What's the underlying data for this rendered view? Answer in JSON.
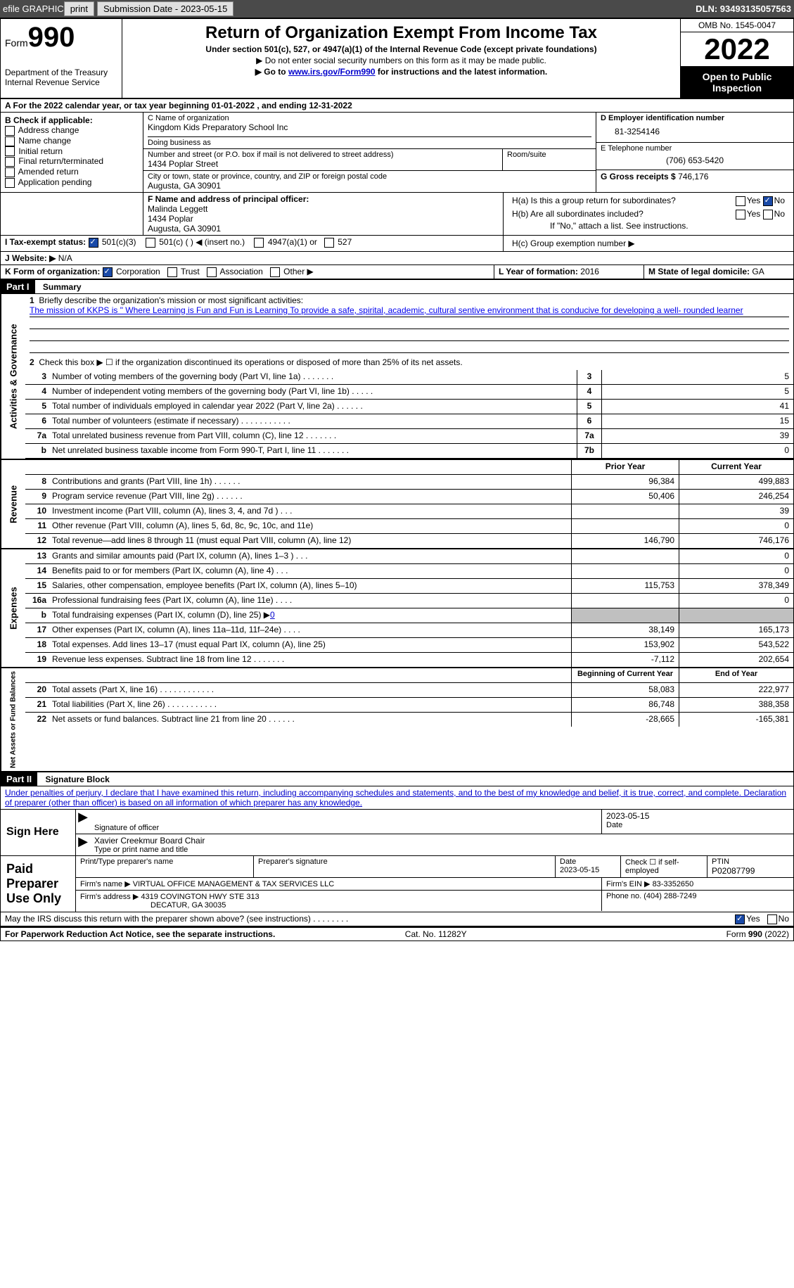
{
  "topbar": {
    "efile": "efile GRAPHIC",
    "print": "print",
    "sub_label": "Submission Date - 2023-05-15",
    "dln": "DLN: 93493135057563"
  },
  "header": {
    "form_word": "Form",
    "form_num": "990",
    "dept": "Department of the Treasury",
    "irs": "Internal Revenue Service",
    "title": "Return of Organization Exempt From Income Tax",
    "subtitle": "Under section 501(c), 527, or 4947(a)(1) of the Internal Revenue Code (except private foundations)",
    "note1": "▶ Do not enter social security numbers on this form as it may be made public.",
    "note2_pre": "▶ Go to ",
    "note2_link": "www.irs.gov/Form990",
    "note2_suf": " for instructions and the latest information.",
    "omb": "OMB No. 1545-0047",
    "year": "2022",
    "inspection": "Open to Public Inspection"
  },
  "rowA": "A For the 2022 calendar year, or tax year beginning 01-01-2022     , and ending 12-31-2022",
  "B": {
    "label": "B Check if applicable:",
    "items": [
      "Address change",
      "Name change",
      "Initial return",
      "Final return/terminated",
      "Amended return",
      "Application pending"
    ]
  },
  "C": {
    "name_label": "C Name of organization",
    "name": "Kingdom Kids Preparatory School Inc",
    "dba_label": "Doing business as",
    "dba": "",
    "street_label": "Number and street (or P.O. box if mail is not delivered to street address)",
    "room_label": "Room/suite",
    "street": "1434 Poplar Street",
    "city_label": "City or town, state or province, country, and ZIP or foreign postal code",
    "city": "Augusta, GA  30901"
  },
  "D": {
    "label": "D Employer identification number",
    "value": "81-3254146"
  },
  "E": {
    "label": "E Telephone number",
    "value": "(706) 653-5420"
  },
  "G": {
    "label": "G Gross receipts $",
    "value": "746,176"
  },
  "F": {
    "label": "F  Name and address of principal officer:",
    "name": "Malinda Leggett",
    "addr1": "1434 Poplar",
    "addr2": "Augusta, GA  30901"
  },
  "H": {
    "a": "H(a)  Is this a group return for subordinates?",
    "b": "H(b)  Are all subordinates included?",
    "b_note": "If \"No,\" attach a list. See instructions.",
    "c": "H(c)  Group exemption number ▶",
    "yes": "Yes",
    "no": "No"
  },
  "I": {
    "label": "I     Tax-exempt status:",
    "opt1": "501(c)(3)",
    "opt2": "501(c) (   ) ◀ (insert no.)",
    "opt3": "4947(a)(1) or",
    "opt4": "527"
  },
  "J": {
    "label": "J    Website: ▶",
    "value": "N/A"
  },
  "K": {
    "label": "K Form of organization:",
    "corp": "Corporation",
    "trust": "Trust",
    "assoc": "Association",
    "other": "Other ▶"
  },
  "L": {
    "label": "L Year of formation:",
    "value": "2016"
  },
  "M": {
    "label": "M State of legal domicile:",
    "value": "GA"
  },
  "part1": {
    "label": "Part I",
    "title": "Summary"
  },
  "act_label": "Activities & Governance",
  "rev_label": "Revenue",
  "exp_label": "Expenses",
  "net_label": "Net Assets or Fund Balances",
  "line1": {
    "num": "1",
    "text": "Briefly describe the organization's mission or most significant activities:",
    "mission": "The mission of KKPS is \" Where Learning is Fun and Fun is Learning To provide a safe, spirital, academic, cultural sentive environment that is conducive for developing a well- rounded learner"
  },
  "line2": {
    "num": "2",
    "text": "Check this box ▶ ☐ if the organization discontinued its operations or disposed of more than 25% of its net assets."
  },
  "summary_rows": [
    {
      "num": "3",
      "text": "Number of voting members of the governing body (Part VI, line 1a)   .    .    .    .    .    .    .",
      "box": "3",
      "val": "5"
    },
    {
      "num": "4",
      "text": "Number of independent voting members of the governing body (Part VI, line 1b)  .    .    .    .    .",
      "box": "4",
      "val": "5"
    },
    {
      "num": "5",
      "text": "Total number of individuals employed in calendar year 2022 (Part V, line 2a) .    .    .    .    .    .",
      "box": "5",
      "val": "41"
    },
    {
      "num": "6",
      "text": "Total number of volunteers (estimate if necessary)   .    .    .    .    .    .    .    .    .    .    .",
      "box": "6",
      "val": "15"
    },
    {
      "num": "7a",
      "text": "Total unrelated business revenue from Part VIII, column (C), line 12  .    .    .    .    .    .    .",
      "box": "7a",
      "val": "39"
    },
    {
      "num": "b",
      "text": "Net unrelated business taxable income from Form 990-T, Part I, line 11   .    .    .    .    .    .    .",
      "box": "7b",
      "val": "0"
    }
  ],
  "col_headers": {
    "prior": "Prior Year",
    "current": "Current Year",
    "boy": "Beginning of Current Year",
    "eoy": "End of Year"
  },
  "revenue_rows": [
    {
      "num": "8",
      "text": "Contributions and grants (Part VIII, line 1h)   .    .    .    .    .    .",
      "prior": "96,384",
      "curr": "499,883"
    },
    {
      "num": "9",
      "text": "Program service revenue (Part VIII, line 2g)    .    .    .    .    .    .",
      "prior": "50,406",
      "curr": "246,254"
    },
    {
      "num": "10",
      "text": "Investment income (Part VIII, column (A), lines 3, 4, and 7d )  .    .    .",
      "prior": "",
      "curr": "39"
    },
    {
      "num": "11",
      "text": "Other revenue (Part VIII, column (A), lines 5, 6d, 8c, 9c, 10c, and 11e)",
      "prior": "",
      "curr": "0"
    },
    {
      "num": "12",
      "text": "Total revenue—add lines 8 through 11 (must equal Part VIII, column (A), line 12)",
      "prior": "146,790",
      "curr": "746,176"
    }
  ],
  "expense_rows": [
    {
      "num": "13",
      "text": "Grants and similar amounts paid (Part IX, column (A), lines 1–3 )  .    .    .",
      "prior": "",
      "curr": "0"
    },
    {
      "num": "14",
      "text": "Benefits paid to or for members (Part IX, column (A), line 4)  .    .    .",
      "prior": "",
      "curr": "0"
    },
    {
      "num": "15",
      "text": "Salaries, other compensation, employee benefits (Part IX, column (A), lines 5–10)",
      "prior": "115,753",
      "curr": "378,349"
    },
    {
      "num": "16a",
      "text": "Professional fundraising fees (Part IX, column (A), line 11e)  .    .    .    .",
      "prior": "",
      "curr": "0"
    },
    {
      "num": "b",
      "text": "Total fundraising expenses (Part IX, column (D), line 25) ▶0",
      "prior": "grey",
      "curr": "grey"
    },
    {
      "num": "17",
      "text": "Other expenses (Part IX, column (A), lines 11a–11d, 11f–24e)  .    .    .    .",
      "prior": "38,149",
      "curr": "165,173"
    },
    {
      "num": "18",
      "text": "Total expenses. Add lines 13–17 (must equal Part IX, column (A), line 25)",
      "prior": "153,902",
      "curr": "543,522"
    },
    {
      "num": "19",
      "text": "Revenue less expenses. Subtract line 18 from line 12 .    .    .    .    .    .    .",
      "prior": "-7,112",
      "curr": "202,654"
    }
  ],
  "net_rows": [
    {
      "num": "20",
      "text": "Total assets (Part X, line 16) .    .    .    .    .    .    .    .    .    .    .    .",
      "prior": "58,083",
      "curr": "222,977"
    },
    {
      "num": "21",
      "text": "Total liabilities (Part X, line 26) .    .    .    .    .    .    .    .    .    .    .",
      "prior": "86,748",
      "curr": "388,358"
    },
    {
      "num": "22",
      "text": "Net assets or fund balances. Subtract line 21 from line 20 .    .    .    .    .    .",
      "prior": "-28,665",
      "curr": "-165,381"
    }
  ],
  "part2": {
    "label": "Part II",
    "title": "Signature Block"
  },
  "penalties": "Under penalties of perjury, I declare that I have examined this return, including accompanying schedules and statements, and to the best of my knowledge and belief, it is true, correct, and complete. Declaration of preparer (other than officer) is based on all information of which preparer has any knowledge.",
  "sign": {
    "label": "Sign Here",
    "sig_label": "Signature of officer",
    "date": "2023-05-15",
    "date_label": "Date",
    "name": "Xavier Creekmur  Board Chair",
    "name_label": "Type or print name and title"
  },
  "preparer": {
    "label": "Paid Preparer Use Only",
    "print_label": "Print/Type preparer's name",
    "sig_label": "Preparer's signature",
    "date_label": "Date",
    "date": "2023-05-15",
    "check_label": "Check ☐ if self-employed",
    "ptin_label": "PTIN",
    "ptin": "P02087799",
    "firm_name_label": "Firm's name    ▶",
    "firm_name": "VIRTUAL OFFICE MANAGEMENT & TAX SERVICES LLC",
    "firm_ein_label": "Firm's EIN ▶",
    "firm_ein": "83-3352650",
    "firm_addr_label": "Firm's address ▶",
    "firm_addr1": "4319 COVINGTON HWY STE 313",
    "firm_addr2": "DECATUR, GA  30035",
    "phone_label": "Phone no.",
    "phone": "(404) 288-7249"
  },
  "discuss": {
    "text": "May the IRS discuss this return with the preparer shown above? (see instructions)  .    .    .    .    .    .    .    .",
    "yes": "Yes",
    "no": "No"
  },
  "footer": {
    "left": "For Paperwork Reduction Act Notice, see the separate instructions.",
    "mid": "Cat. No. 11282Y",
    "right": "Form 990 (2022)"
  }
}
